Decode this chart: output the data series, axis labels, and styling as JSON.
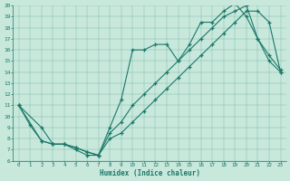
{
  "xlabel": "Humidex (Indice chaleur)",
  "xlim": [
    -0.5,
    23.5
  ],
  "ylim": [
    6,
    20
  ],
  "xticks": [
    0,
    1,
    2,
    3,
    4,
    5,
    6,
    7,
    8,
    9,
    10,
    11,
    12,
    13,
    14,
    15,
    16,
    17,
    18,
    19,
    20,
    21,
    22,
    23
  ],
  "yticks": [
    6,
    7,
    8,
    9,
    10,
    11,
    12,
    13,
    14,
    15,
    16,
    17,
    18,
    19,
    20
  ],
  "bg_color": "#c8e8dc",
  "line_color": "#1a7868",
  "line1_x": [
    0,
    1,
    2,
    3,
    4,
    5,
    6,
    7,
    8,
    9,
    10,
    11,
    12,
    13,
    14,
    15,
    16,
    17,
    18,
    19,
    20,
    21,
    22,
    23
  ],
  "line1_y": [
    11,
    9.2,
    7.8,
    7.5,
    7.5,
    7.2,
    6.8,
    6.5,
    9.0,
    11.5,
    16,
    16,
    16.5,
    16.5,
    15,
    16.5,
    18.5,
    18.5,
    19.5,
    20.2,
    19,
    17,
    15,
    14
  ],
  "line2_x": [
    0,
    2,
    3,
    4,
    5,
    6,
    7,
    8,
    9,
    10,
    11,
    12,
    13,
    14,
    15,
    16,
    17,
    18,
    19,
    20,
    21,
    22,
    23
  ],
  "line2_y": [
    11,
    7.8,
    7.5,
    7.5,
    7.2,
    6.8,
    6.5,
    8.5,
    9.5,
    11,
    12,
    13,
    14,
    15,
    16,
    17,
    18,
    19,
    19.5,
    20,
    17,
    15.5,
    14.2
  ],
  "line3_x": [
    0,
    2,
    3,
    4,
    5,
    6,
    7,
    8,
    9,
    10,
    11,
    12,
    13,
    14,
    15,
    16,
    17,
    18,
    19,
    20,
    21,
    22,
    23
  ],
  "line3_y": [
    11,
    9,
    7.5,
    7.5,
    7.0,
    6.5,
    6.5,
    8.0,
    8.5,
    9.5,
    10.5,
    11.5,
    12.5,
    13.5,
    14.5,
    15.5,
    16.5,
    17.5,
    18.5,
    19.5,
    19.5,
    18.5,
    14
  ]
}
